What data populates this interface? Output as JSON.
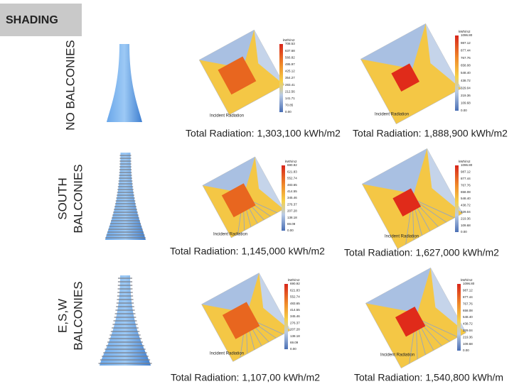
{
  "header": {
    "title": "SHADING"
  },
  "rows": [
    {
      "label_lines": [
        "NO BALCONIES"
      ],
      "panels": [
        {
          "unit": "kWh/m2",
          "caption": "Incident Radiation",
          "legend": [
            "708.53",
            "637.68",
            "566.82",
            "495.97",
            "425.12",
            "354.27",
            "283.41",
            "212.56",
            "141.71",
            "70.85",
            "0.00"
          ],
          "total": "Total Radiation: 1,303,100 kWh/m2"
        },
        {
          "unit": "kWh/m2",
          "caption": "Incident Radiation",
          "legend": [
            "1096.80",
            "987.12",
            "877.44",
            "767.76",
            "658.08",
            "548.40",
            "438.72",
            "329.04",
            "219.36",
            "109.68",
            "0.00"
          ],
          "total": "Total Radiation: 1,888,900 kWh/m2"
        }
      ]
    },
    {
      "label_lines": [
        "SOUTH",
        "BALCONIES"
      ],
      "panels": [
        {
          "unit": "kWh/m2",
          "caption": "Incident Radiation",
          "legend": [
            "690.92",
            "621.83",
            "552.74",
            "483.65",
            "414.55",
            "345.46",
            "276.37",
            "207.28",
            "138.18",
            "69.09",
            "0.00"
          ],
          "total": "Total Radiation: 1,145,000 kWh/m2"
        },
        {
          "unit": "kWh/m2",
          "caption": "Incident Radiation",
          "legend": [
            "1096.80",
            "987.12",
            "877.44",
            "767.76",
            "658.08",
            "548.40",
            "438.72",
            "329.04",
            "219.36",
            "109.68",
            "0.00"
          ],
          "total": "Total Radiation: 1,627,000 kWh/m2"
        }
      ]
    },
    {
      "label_lines": [
        "E,S,W",
        "BALCONIES"
      ],
      "panels": [
        {
          "unit": "kWh/m2",
          "caption": "Incident Radiation",
          "legend": [
            "690.92",
            "621.83",
            "552.74",
            "483.65",
            "414.55",
            "345.46",
            "276.37",
            "207.28",
            "138.18",
            "69.09",
            "0.00"
          ],
          "total": "Total Radiation: 1,107,00 kWh/m2"
        },
        {
          "unit": "kWh/m2",
          "caption": "Incident Radiation",
          "legend": [
            "1096.80",
            "987.12",
            "877.44",
            "767.76",
            "658.08",
            "548.40",
            "438.72",
            "329.04",
            "219.36",
            "109.68",
            "0.00"
          ],
          "total": "Total Radiation: 1,540,800 kWh/m"
        }
      ]
    }
  ]
}
